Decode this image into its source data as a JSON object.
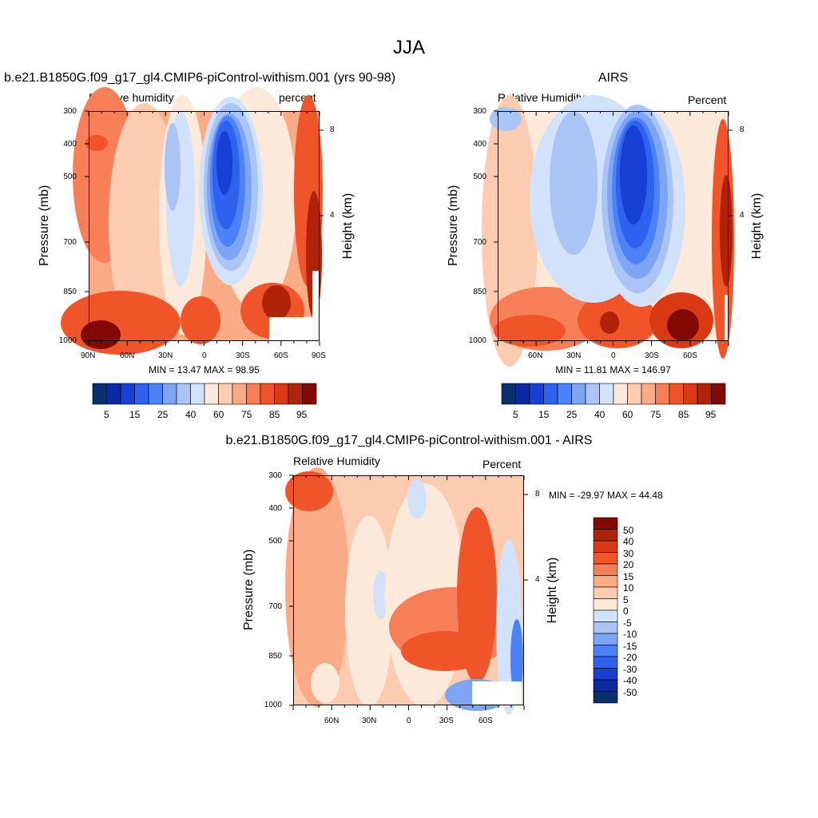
{
  "figure": {
    "title": "JJA"
  },
  "chart_data": [
    {
      "type": "heatmap",
      "title": "b.e21.B1850G.f09_g17_gl4.CMIP6-piControl-withism.001 (yrs 90-98)",
      "left_label": "Relative humidity",
      "right_label": "percent",
      "ylabel": "Pressure (mb)",
      "ylabel_right": "Height (km)",
      "pressure_ticks": [
        "300",
        "400",
        "500",
        "700",
        "850",
        "1000"
      ],
      "lat_ticks": [
        "90N",
        "60N",
        "30N",
        "0",
        "30S",
        "60S",
        "90S"
      ],
      "height_ticks": [
        "8",
        "4"
      ],
      "stats": "MIN =  13.47  MAX =  98.95",
      "min": 13.47,
      "max": 98.95,
      "colorbar_labels": [
        "5",
        "15",
        "25",
        "40",
        "60",
        "75",
        "85",
        "95"
      ],
      "colors": [
        "#08306b",
        "#0b29a3",
        "#1840d4",
        "#2f62ee",
        "#4b82f7",
        "#7ea5f4",
        "#a9c4f5",
        "#d2e2fb",
        "#fde9da",
        "#fccbb0",
        "#fbaa86",
        "#f77f57",
        "#f0552a",
        "#da3a13",
        "#b02309",
        "#820a02"
      ]
    },
    {
      "type": "heatmap",
      "title": "AIRS",
      "left_label": "Relative Humidity",
      "right_label": "Percent",
      "ylabel": "Pressure (mb)",
      "ylabel_right": "Height (km)",
      "pressure_ticks": [
        "300",
        "400",
        "500",
        "700",
        "850",
        "1000"
      ],
      "lat_ticks": [
        "60N",
        "30N",
        "0",
        "30S",
        "60S"
      ],
      "height_ticks": [
        "8",
        "4"
      ],
      "stats": "MIN =  11.81  MAX = 146.97",
      "min": 11.81,
      "max": 146.97,
      "colorbar_labels": [
        "5",
        "15",
        "25",
        "40",
        "60",
        "75",
        "85",
        "95"
      ],
      "colors": [
        "#08306b",
        "#0b29a3",
        "#1840d4",
        "#2f62ee",
        "#4b82f7",
        "#7ea5f4",
        "#a9c4f5",
        "#d2e2fb",
        "#fde9da",
        "#fccbb0",
        "#fbaa86",
        "#f77f57",
        "#f0552a",
        "#da3a13",
        "#b02309",
        "#820a02"
      ]
    },
    {
      "type": "heatmap",
      "title": "b.e21.B1850G.f09_g17_gl4.CMIP6-piControl-withism.001 - AIRS",
      "left_label": "Relative Humidity",
      "right_label": "Percent",
      "ylabel": "Pressure (mb)",
      "ylabel_right": "Height (km)",
      "pressure_ticks": [
        "300",
        "400",
        "500",
        "700",
        "850",
        "1000"
      ],
      "lat_ticks": [
        "60N",
        "30N",
        "0",
        "30S",
        "60S"
      ],
      "height_ticks": [
        "8",
        "4"
      ],
      "stats": "MIN = -29.97  MAX =  44.48",
      "min": -29.97,
      "max": 44.48,
      "colorbar_labels": [
        "50",
        "40",
        "30",
        "20",
        "15",
        "10",
        "5",
        "0",
        "-5",
        "-10",
        "-15",
        "-20",
        "-30",
        "-40",
        "-50"
      ],
      "colors": [
        "#820a02",
        "#b02309",
        "#da3a13",
        "#f0552a",
        "#f77f57",
        "#fbaa86",
        "#fccbb0",
        "#fde9da",
        "#d2e2fb",
        "#a9c4f5",
        "#7ea5f4",
        "#4b82f7",
        "#2f62ee",
        "#1840d4",
        "#0b29a3",
        "#08306b"
      ]
    }
  ]
}
